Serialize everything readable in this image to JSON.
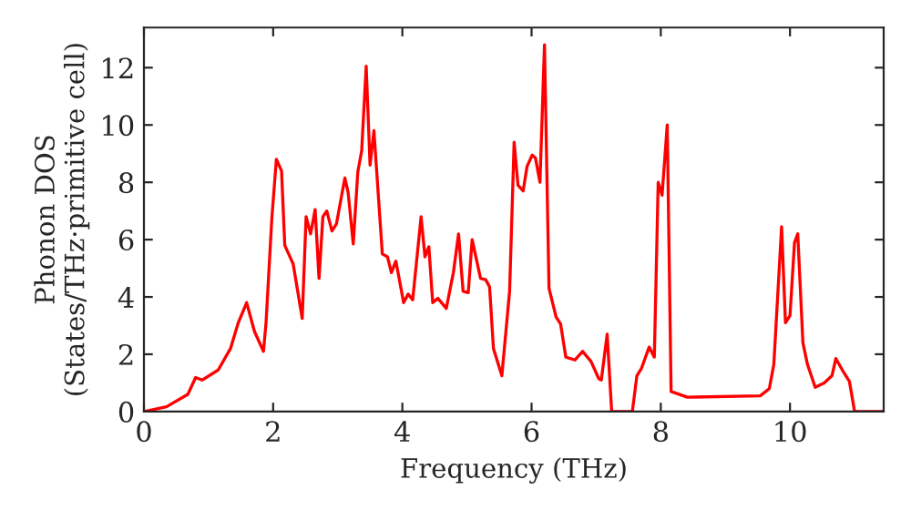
{
  "chart_data": {
    "type": "line",
    "xlabel": "Frequency (THz)",
    "ylabel": "Phonon DOS\n(States/THz·primitive cell)",
    "xlim": [
      0,
      11.45
    ],
    "ylim": [
      0,
      13.4
    ],
    "xticks": [
      0,
      2,
      4,
      6,
      8,
      10
    ],
    "yticks": [
      0,
      2,
      4,
      6,
      8,
      10,
      12
    ],
    "grid": false,
    "legend": false,
    "marker": "none",
    "line_style": "solid",
    "series": [
      {
        "color": "#ff0000",
        "x": [
          0,
          0.35,
          0.68,
          0.8,
          0.9,
          1.15,
          1.34,
          1.46,
          1.59,
          1.71,
          1.85,
          1.89,
          1.98,
          2.05,
          2.13,
          2.18,
          2.31,
          2.45,
          2.51,
          2.58,
          2.65,
          2.71,
          2.77,
          2.83,
          2.91,
          2.98,
          3.11,
          3.16,
          3.24,
          3.31,
          3.37,
          3.44,
          3.5,
          3.56,
          3.69,
          3.77,
          3.83,
          3.9,
          4.02,
          4.09,
          4.16,
          4.29,
          4.35,
          4.41,
          4.47,
          4.55,
          4.68,
          4.79,
          4.87,
          4.94,
          5.02,
          5.08,
          5.21,
          5.29,
          5.35,
          5.41,
          5.54,
          5.66,
          5.73,
          5.79,
          5.87,
          5.93,
          6.01,
          6.06,
          6.13,
          6.2,
          6.27,
          6.38,
          6.45,
          6.53,
          6.67,
          6.79,
          6.92,
          7.04,
          7.08,
          7.17,
          7.24,
          7.56,
          7.63,
          7.7,
          7.82,
          7.9,
          7.96,
          8.02,
          8.1,
          8.16,
          8.41,
          9.54,
          9.68,
          9.75,
          9.87,
          9.93,
          10.0,
          10.07,
          10.12,
          10.2,
          10.27,
          10.39,
          10.53,
          10.65,
          10.71,
          10.81,
          10.92,
          11.0,
          11.45
        ],
        "values": [
          0,
          0.17,
          0.6,
          1.19,
          1.1,
          1.45,
          2.2,
          3.1,
          3.8,
          2.8,
          2.1,
          3.1,
          6.75,
          8.8,
          8.4,
          5.8,
          5.15,
          3.25,
          6.8,
          6.2,
          7.05,
          4.65,
          6.8,
          7.0,
          6.3,
          6.55,
          8.15,
          7.65,
          5.85,
          8.35,
          9.1,
          12.05,
          8.6,
          9.8,
          5.5,
          5.4,
          4.85,
          5.25,
          3.8,
          4.1,
          3.9,
          6.8,
          5.4,
          5.75,
          3.8,
          3.95,
          3.6,
          4.85,
          6.2,
          4.2,
          4.15,
          6.0,
          4.65,
          4.6,
          4.35,
          2.2,
          1.25,
          4.2,
          9.4,
          7.9,
          7.7,
          8.55,
          8.95,
          8.85,
          8.0,
          12.8,
          4.3,
          3.3,
          3.05,
          1.9,
          1.8,
          2.1,
          1.75,
          1.15,
          1.1,
          2.7,
          0,
          0,
          1.25,
          1.5,
          2.25,
          1.9,
          8.0,
          7.55,
          10.0,
          0.7,
          0.5,
          0.55,
          0.8,
          1.65,
          6.45,
          3.1,
          3.35,
          5.9,
          6.2,
          2.4,
          1.65,
          0.85,
          1.0,
          1.25,
          1.85,
          1.45,
          1.05,
          0,
          0
        ]
      }
    ]
  }
}
